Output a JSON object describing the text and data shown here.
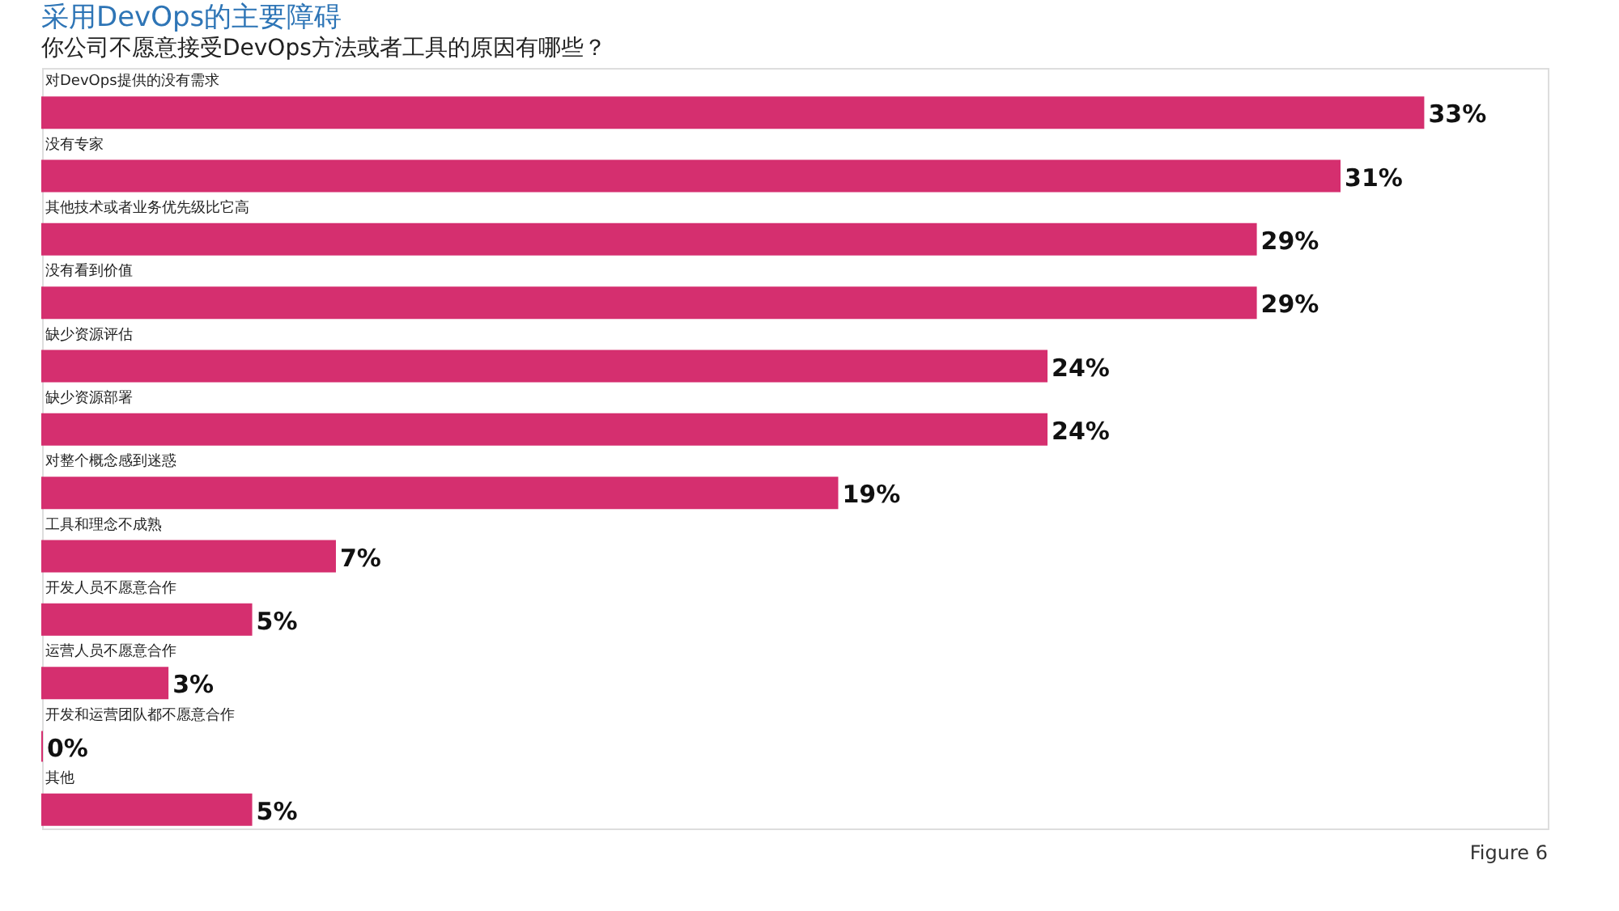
{
  "chart_data": {
    "type": "bar",
    "orientation": "horizontal",
    "title": "采用DevOps的主要障碍",
    "subtitle": "你公司不愿意接受DevOps方法或者工具的原因有哪些？",
    "categories": [
      "对DevOps提供的没有需求",
      "没有专家",
      "其他技术或者业务优先级比它高",
      "没有看到价值",
      "缺少资源评估",
      "缺少资源部署",
      "对整个概念感到迷惑",
      "工具和理念不成熟",
      "开发人员不愿意合作",
      "运营人员不愿意合作",
      "开发和运营团队都不愿意合作",
      "其他"
    ],
    "values": [
      33,
      31,
      29,
      29,
      24,
      24,
      19,
      7,
      5,
      3,
      0,
      5
    ],
    "color": "#d52f6f",
    "value_labels": [
      "33%",
      "31%",
      "29%",
      "29%",
      "24%",
      "24%",
      "19%",
      "7%",
      "5%",
      "3%",
      "0%",
      "5%"
    ],
    "annotations": [
      "Figure 6"
    ]
  }
}
